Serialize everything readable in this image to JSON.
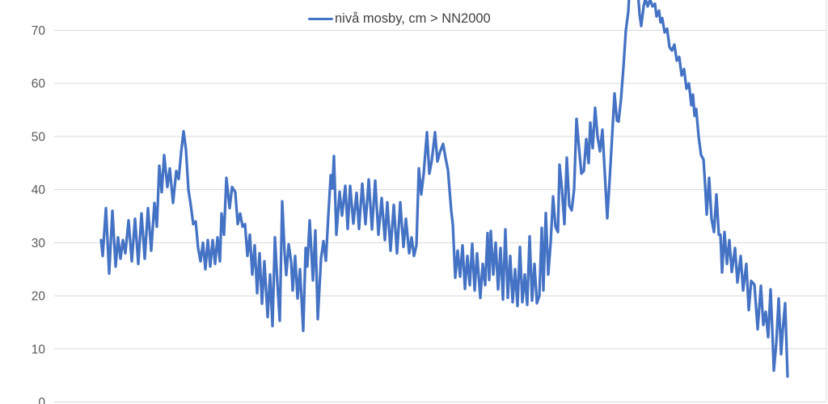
{
  "legend": {
    "label": "nivå mosby, cm > NN2000"
  },
  "chart_data": {
    "type": "line",
    "title": "",
    "xlabel": "",
    "ylabel": "",
    "x_is_pixel": true,
    "y_ticks": [
      0,
      10,
      20,
      30,
      40,
      50,
      60,
      70
    ],
    "ylim": [
      0,
      75.7
    ],
    "grid": true,
    "legend_position": "top-center",
    "colors": {
      "line": "#4472C4",
      "gridline": "#D9D9D9",
      "tick_label": "#595959",
      "legend_text": "#404040",
      "background": "#FFFFFF"
    },
    "series": [
      {
        "name": "nivå mosby, cm > NN2000",
        "color": "#4472C4",
        "points": [
          [
            125,
            30.5
          ],
          [
            127,
            27.5
          ],
          [
            131,
            36.5
          ],
          [
            135,
            24.2
          ],
          [
            139,
            36
          ],
          [
            143,
            25.5
          ],
          [
            146,
            31
          ],
          [
            149,
            27
          ],
          [
            152,
            30.5
          ],
          [
            155,
            28
          ],
          [
            159,
            34.2
          ],
          [
            163,
            26.5
          ],
          [
            167,
            34.5
          ],
          [
            171,
            26
          ],
          [
            175,
            35.5
          ],
          [
            179,
            27
          ],
          [
            183,
            36.5
          ],
          [
            187,
            28.5
          ],
          [
            191,
            37.5
          ],
          [
            194,
            33
          ],
          [
            197,
            44.5
          ],
          [
            200,
            39.5
          ],
          [
            203,
            46.5
          ],
          [
            207,
            40.5
          ],
          [
            210,
            44
          ],
          [
            214,
            37.5
          ],
          [
            218,
            43.5
          ],
          [
            221,
            42
          ],
          [
            224,
            47
          ],
          [
            227,
            51
          ],
          [
            230,
            47.5
          ],
          [
            233,
            40
          ],
          [
            236,
            37
          ],
          [
            239,
            33.5
          ],
          [
            242,
            34
          ],
          [
            245,
            29
          ],
          [
            248,
            26.5
          ],
          [
            251,
            30
          ],
          [
            254,
            25
          ],
          [
            257,
            30.5
          ],
          [
            260,
            25.5
          ],
          [
            263,
            30.5
          ],
          [
            266,
            26
          ],
          [
            269,
            31
          ],
          [
            272,
            26.5
          ],
          [
            274,
            35.5
          ],
          [
            277,
            31.5
          ],
          [
            280,
            42.2
          ],
          [
            284,
            36.5
          ],
          [
            287,
            40.5
          ],
          [
            291,
            39.5
          ],
          [
            294,
            33.5
          ],
          [
            297,
            35.5
          ],
          [
            300,
            33
          ],
          [
            303,
            33.5
          ],
          [
            306,
            27.5
          ],
          [
            309,
            31.5
          ],
          [
            312,
            24
          ],
          [
            315,
            29.5
          ],
          [
            318,
            20.5
          ],
          [
            321,
            28
          ],
          [
            324,
            18.5
          ],
          [
            327,
            26.5
          ],
          [
            331,
            16
          ],
          [
            334,
            24
          ],
          [
            337,
            14.3
          ],
          [
            340,
            31
          ],
          [
            343,
            22.5
          ],
          [
            346,
            15.3
          ],
          [
            349,
            37.8
          ],
          [
            352,
            28
          ],
          [
            354,
            23.9
          ],
          [
            357,
            29.7
          ],
          [
            360,
            26.5
          ],
          [
            362,
            21
          ],
          [
            365,
            27.5
          ],
          [
            368,
            19.5
          ],
          [
            371,
            25
          ],
          [
            375,
            13.4
          ],
          [
            378,
            29
          ],
          [
            380,
            25.5
          ],
          [
            383,
            34.2
          ],
          [
            387,
            22.9
          ],
          [
            390,
            32.3
          ],
          [
            393,
            15.6
          ],
          [
            397,
            27
          ],
          [
            400,
            30.3
          ],
          [
            403,
            26.6
          ],
          [
            406,
            35
          ],
          [
            409,
            42.7
          ],
          [
            411,
            40.2
          ],
          [
            413,
            46.3
          ],
          [
            416,
            31.5
          ],
          [
            420,
            39.6
          ],
          [
            423,
            35.1
          ],
          [
            427,
            40.7
          ],
          [
            430,
            32.6
          ],
          [
            433,
            40.7
          ],
          [
            437,
            33.6
          ],
          [
            441,
            39.4
          ],
          [
            444,
            32.6
          ],
          [
            448,
            41.1
          ],
          [
            452,
            33.5
          ],
          [
            456,
            41.9
          ],
          [
            460,
            32.5
          ],
          [
            464,
            41.7
          ],
          [
            468,
            31.5
          ],
          [
            472,
            38.4
          ],
          [
            476,
            30.5
          ],
          [
            479,
            37.6
          ],
          [
            483,
            28.5
          ],
          [
            487,
            37.1
          ],
          [
            491,
            28
          ],
          [
            495,
            37.6
          ],
          [
            499,
            29.2
          ],
          [
            502,
            34.5
          ],
          [
            506,
            28
          ],
          [
            509,
            31
          ],
          [
            512,
            27.5
          ],
          [
            515,
            29.5
          ],
          [
            518,
            44
          ],
          [
            521,
            39.1
          ],
          [
            524,
            43
          ],
          [
            528,
            50.8
          ],
          [
            531,
            43
          ],
          [
            534,
            45.5
          ],
          [
            538,
            50.8
          ],
          [
            541,
            45.3
          ],
          [
            544,
            47
          ],
          [
            548,
            48.6
          ],
          [
            551,
            46
          ],
          [
            554,
            43.7
          ],
          [
            558,
            36.1
          ],
          [
            560,
            33.5
          ],
          [
            563,
            23.4
          ],
          [
            566,
            28.5
          ],
          [
            569,
            23.6
          ],
          [
            572,
            29.5
          ],
          [
            575,
            21.3
          ],
          [
            578,
            27.5
          ],
          [
            581,
            22
          ],
          [
            584,
            29.8
          ],
          [
            587,
            21
          ],
          [
            590,
            28
          ],
          [
            594,
            19.6
          ],
          [
            597,
            26
          ],
          [
            600,
            22
          ],
          [
            603,
            31.8
          ],
          [
            605,
            23
          ],
          [
            607,
            32.2
          ],
          [
            610,
            24
          ],
          [
            613,
            30
          ],
          [
            616,
            21.2
          ],
          [
            619,
            29
          ],
          [
            622,
            19.3
          ],
          [
            625,
            32.5
          ],
          [
            628,
            19.6
          ],
          [
            631,
            27.5
          ],
          [
            634,
            18.8
          ],
          [
            637,
            25
          ],
          [
            640,
            18.1
          ],
          [
            643,
            29.2
          ],
          [
            646,
            18.8
          ],
          [
            649,
            24
          ],
          [
            652,
            18.3
          ],
          [
            655,
            31.2
          ],
          [
            658,
            19.1
          ],
          [
            661,
            26
          ],
          [
            664,
            18.6
          ],
          [
            667,
            20
          ],
          [
            670,
            32.8
          ],
          [
            672,
            21
          ],
          [
            675,
            35.6
          ],
          [
            678,
            24
          ],
          [
            681,
            30
          ],
          [
            684,
            38.7
          ],
          [
            687,
            33
          ],
          [
            690,
            32
          ],
          [
            692,
            44.7
          ],
          [
            695,
            40
          ],
          [
            698,
            33.5
          ],
          [
            701,
            46
          ],
          [
            704,
            37
          ],
          [
            707,
            36.1
          ],
          [
            710,
            40
          ],
          [
            713,
            53.3
          ],
          [
            716,
            48
          ],
          [
            719,
            43
          ],
          [
            722,
            43.5
          ],
          [
            725,
            49.5
          ],
          [
            728,
            45
          ],
          [
            730,
            52.6
          ],
          [
            733,
            47.8
          ],
          [
            736,
            55.4
          ],
          [
            739,
            50
          ],
          [
            742,
            47.2
          ],
          [
            745,
            51.3
          ],
          [
            748,
            43
          ],
          [
            751,
            34.6
          ],
          [
            754,
            42
          ],
          [
            757,
            50
          ],
          [
            760,
            58.1
          ],
          [
            763,
            53
          ],
          [
            765,
            52.8
          ],
          [
            768,
            57
          ],
          [
            771,
            63
          ],
          [
            774,
            70
          ],
          [
            777,
            73.5
          ],
          [
            779,
            79
          ],
          [
            783,
            76.5
          ],
          [
            786,
            79
          ],
          [
            789,
            77
          ],
          [
            791,
            73
          ],
          [
            793,
            70.8
          ],
          [
            796,
            74.5
          ],
          [
            798,
            76
          ],
          [
            801,
            74.5
          ],
          [
            804,
            75.8
          ],
          [
            807,
            74.5
          ],
          [
            810,
            75
          ],
          [
            812,
            72.6
          ],
          [
            815,
            73.7
          ],
          [
            817,
            71.5
          ],
          [
            819,
            72.3
          ],
          [
            822,
            69.6
          ],
          [
            825,
            70.3
          ],
          [
            828,
            66.8
          ],
          [
            831,
            66.2
          ],
          [
            834,
            67.3
          ],
          [
            837,
            64.3
          ],
          [
            840,
            65
          ],
          [
            843,
            61.5
          ],
          [
            846,
            62.7
          ],
          [
            849,
            59
          ],
          [
            852,
            60
          ],
          [
            855,
            55.9
          ],
          [
            857,
            57.9
          ],
          [
            859,
            53.9
          ],
          [
            861,
            55.2
          ],
          [
            864,
            50
          ],
          [
            867,
            46.5
          ],
          [
            870,
            45.7
          ],
          [
            872,
            41
          ],
          [
            874,
            35.3
          ],
          [
            877,
            42.2
          ],
          [
            880,
            34.5
          ],
          [
            883,
            32
          ],
          [
            886,
            39.1
          ],
          [
            889,
            31.5
          ],
          [
            891,
            31.5
          ],
          [
            893,
            24.4
          ],
          [
            896,
            32
          ],
          [
            899,
            26
          ],
          [
            902,
            30.5
          ],
          [
            905,
            24.5
          ],
          [
            909,
            29
          ],
          [
            912,
            22.5
          ],
          [
            916,
            27.5
          ],
          [
            919,
            21
          ],
          [
            923,
            26
          ],
          [
            926,
            17.3
          ],
          [
            929,
            22.8
          ],
          [
            933,
            22.1
          ],
          [
            937,
            13.7
          ],
          [
            941,
            21.9
          ],
          [
            944,
            14.5
          ],
          [
            947,
            17
          ],
          [
            950,
            12.2
          ],
          [
            953,
            21.2
          ],
          [
            955,
            14
          ],
          [
            957,
            5.9
          ],
          [
            960,
            11
          ],
          [
            963,
            19.5
          ],
          [
            966,
            9
          ],
          [
            968,
            13.5
          ],
          [
            971,
            18.6
          ],
          [
            974,
            4.8
          ]
        ]
      }
    ]
  }
}
